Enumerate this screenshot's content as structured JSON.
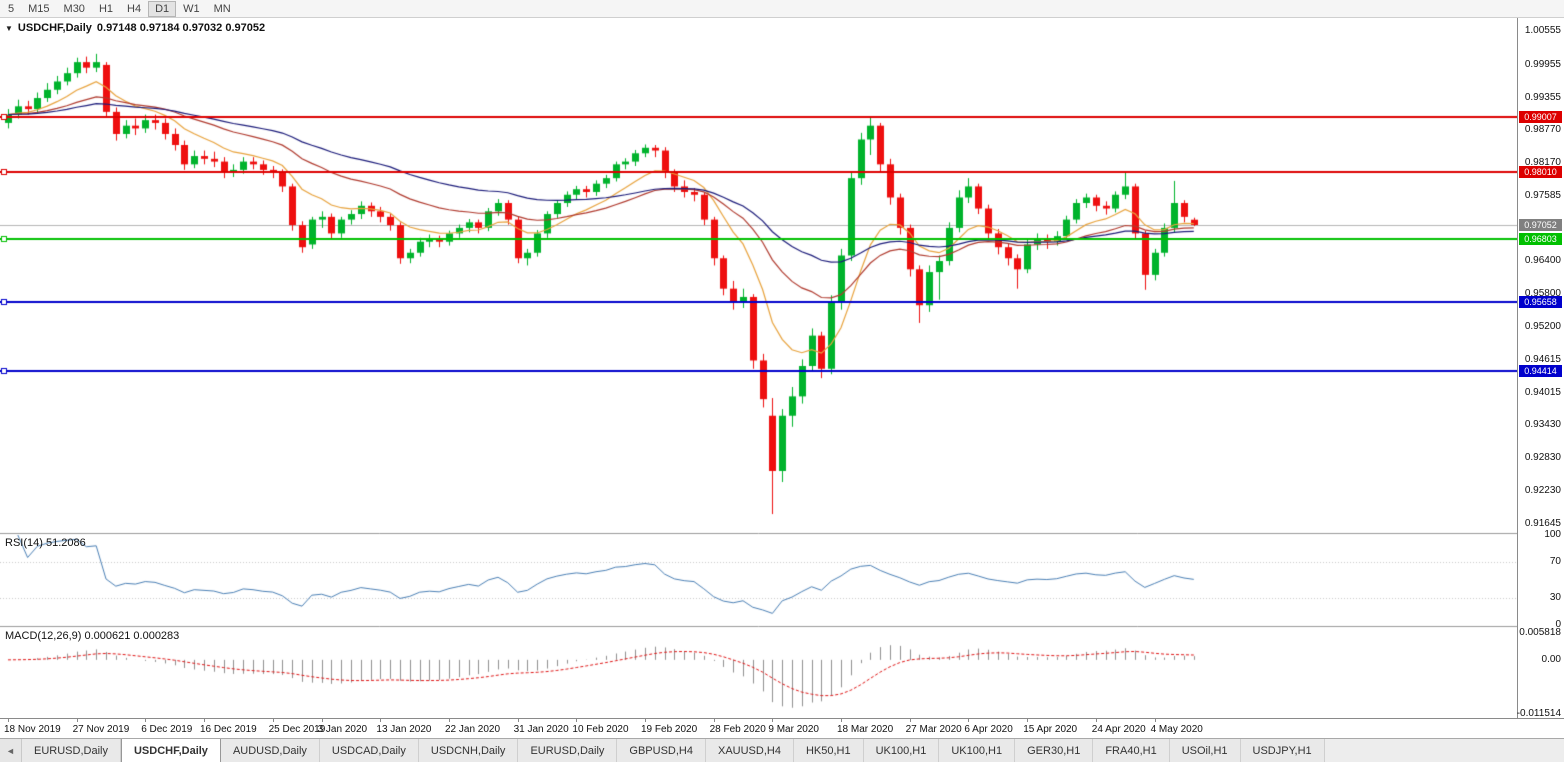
{
  "toolbar": {
    "periods": [
      "5",
      "M15",
      "M30",
      "H1",
      "H4",
      "D1",
      "W1",
      "MN"
    ],
    "active_period": "D1"
  },
  "icons": {
    "collapse": "▼",
    "tab_scroll_left": "◄"
  },
  "chart": {
    "symbol_title": "USDCHF,Daily",
    "ohlc_text": "0.97148 0.97184 0.97032 0.97052",
    "open": "0.97148",
    "high": "0.97184",
    "low": "0.97032",
    "close": "0.97052"
  },
  "indicators": {
    "rsi": {
      "label": "RSI(14) 51.2086",
      "period": 14,
      "value": 51.2086,
      "axis_labels": [
        "100",
        "70",
        "30",
        "0"
      ],
      "levels": [
        70,
        30
      ],
      "line_color": "#4a7fb5"
    },
    "macd": {
      "label": "MACD(12,26,9) 0.000621 0.000283",
      "fast": 12,
      "slow": 26,
      "signal": 9,
      "macd_value": 0.000621,
      "signal_value": 0.000283,
      "axis_labels": [
        "0.005818",
        "0.00",
        "-0.011514"
      ],
      "histogram_color": "#909090",
      "signal_color": "#e01515"
    }
  },
  "price_axis": {
    "labels": [
      "1.00555",
      "0.99955",
      "0.99355",
      "0.98770",
      "0.98170",
      "0.97585",
      "0.96400",
      "0.95800",
      "0.95200",
      "0.94615",
      "0.94015",
      "0.93430",
      "0.92830",
      "0.92230",
      "0.91645"
    ]
  },
  "levels": [
    {
      "price": 0.99007,
      "text": "0.99007",
      "color": "#dd0000",
      "type": "resistance"
    },
    {
      "price": 0.9801,
      "text": "0.98010",
      "color": "#dd0000",
      "type": "resistance"
    },
    {
      "price": 0.96803,
      "text": "0.96803",
      "color": "#00c000",
      "type": "support"
    },
    {
      "price": 0.95658,
      "text": "0.95658",
      "color": "#0000cc",
      "type": "support"
    },
    {
      "price": 0.94414,
      "text": "0.94414",
      "color": "#0000cc",
      "type": "support"
    }
  ],
  "current_price": {
    "price": 0.97052,
    "text": "0.97052",
    "color": "#808080"
  },
  "time_axis": {
    "labels": [
      {
        "text": "18 Nov 2019",
        "index": 0
      },
      {
        "text": "27 Nov 2019",
        "index": 7
      },
      {
        "text": "6 Dec 2019",
        "index": 14
      },
      {
        "text": "16 Dec 2019",
        "index": 20
      },
      {
        "text": "25 Dec 2019",
        "index": 27
      },
      {
        "text": "3 Jan 2020",
        "index": 32
      },
      {
        "text": "13 Jan 2020",
        "index": 38
      },
      {
        "text": "22 Jan 2020",
        "index": 45
      },
      {
        "text": "31 Jan 2020",
        "index": 52
      },
      {
        "text": "10 Feb 2020",
        "index": 58
      },
      {
        "text": "19 Feb 2020",
        "index": 65
      },
      {
        "text": "28 Feb 2020",
        "index": 72
      },
      {
        "text": "9 Mar 2020",
        "index": 78
      },
      {
        "text": "18 Mar 2020",
        "index": 85
      },
      {
        "text": "27 Mar 2020",
        "index": 92
      },
      {
        "text": "6 Apr 2020",
        "index": 98
      },
      {
        "text": "15 Apr 2020",
        "index": 104
      },
      {
        "text": "24 Apr 2020",
        "index": 111
      },
      {
        "text": "4 May 2020",
        "index": 117
      }
    ]
  },
  "tabs": {
    "active_index": 1,
    "items": [
      "EURUSD,Daily",
      "USDCHF,Daily",
      "AUDUSD,Daily",
      "USDCAD,Daily",
      "USDCNH,Daily",
      "EURUSD,Daily",
      "GBPUSD,H4",
      "XAUUSD,H4",
      "HK50,H1",
      "UK100,H1",
      "UK100,H1",
      "GER30,H1",
      "FRA40,H1",
      "USOil,H1",
      "USDJPY,H1"
    ]
  },
  "chart_data": {
    "type": "candlestick",
    "symbol": "USDCHF",
    "timeframe": "Daily",
    "colors": {
      "up": "#00b32c",
      "down": "#ee0f0f",
      "background": "#ffffff"
    },
    "moving_averages": [
      {
        "name": "fast-ma",
        "period": 10,
        "color": "#e8a33d"
      },
      {
        "name": "mid-ma",
        "period": 25,
        "color": "#b03a2e"
      },
      {
        "name": "slow-ma",
        "period": 45,
        "color": "#1b1b7a"
      }
    ],
    "candles": [
      [
        0.989,
        0.9915,
        0.988,
        0.9905
      ],
      [
        0.9905,
        0.9932,
        0.9898,
        0.992
      ],
      [
        0.992,
        0.993,
        0.9905,
        0.9915
      ],
      [
        0.9915,
        0.9945,
        0.9908,
        0.9935
      ],
      [
        0.9935,
        0.9962,
        0.9928,
        0.995
      ],
      [
        0.995,
        0.9975,
        0.9942,
        0.9965
      ],
      [
        0.9965,
        0.999,
        0.9958,
        0.998
      ],
      [
        0.998,
        1.0008,
        0.9972,
        1.0
      ],
      [
        1.0,
        1.001,
        0.998,
        0.999
      ],
      [
        0.999,
        1.0015,
        0.9982,
        1.0
      ],
      [
        0.9995,
        1.0,
        0.99,
        0.991
      ],
      [
        0.991,
        0.9918,
        0.9858,
        0.987
      ],
      [
        0.987,
        0.9895,
        0.9862,
        0.9885
      ],
      [
        0.9885,
        0.9898,
        0.9868,
        0.988
      ],
      [
        0.988,
        0.9905,
        0.9872,
        0.9895
      ],
      [
        0.9895,
        0.9905,
        0.9878,
        0.989
      ],
      [
        0.989,
        0.9898,
        0.986,
        0.987
      ],
      [
        0.987,
        0.988,
        0.984,
        0.985
      ],
      [
        0.985,
        0.9858,
        0.9805,
        0.9815
      ],
      [
        0.9815,
        0.984,
        0.9808,
        0.983
      ],
      [
        0.983,
        0.984,
        0.9815,
        0.9825
      ],
      [
        0.9825,
        0.9838,
        0.981,
        0.982
      ],
      [
        0.982,
        0.9828,
        0.979,
        0.98
      ],
      [
        0.98,
        0.9815,
        0.9792,
        0.9805
      ],
      [
        0.9805,
        0.9828,
        0.9798,
        0.982
      ],
      [
        0.982,
        0.9828,
        0.9806,
        0.9815
      ],
      [
        0.9815,
        0.9822,
        0.9796,
        0.9805
      ],
      [
        0.9805,
        0.9812,
        0.979,
        0.98
      ],
      [
        0.98,
        0.9806,
        0.9765,
        0.9775
      ],
      [
        0.9775,
        0.978,
        0.9695,
        0.9705
      ],
      [
        0.9705,
        0.9712,
        0.9655,
        0.9665
      ],
      [
        0.967,
        0.972,
        0.9662,
        0.9715
      ],
      [
        0.9715,
        0.973,
        0.97,
        0.972
      ],
      [
        0.972,
        0.9726,
        0.968,
        0.969
      ],
      [
        0.969,
        0.972,
        0.9682,
        0.9715
      ],
      [
        0.9715,
        0.9732,
        0.9706,
        0.9725
      ],
      [
        0.9725,
        0.9748,
        0.9716,
        0.974
      ],
      [
        0.974,
        0.9746,
        0.972,
        0.973
      ],
      [
        0.973,
        0.9738,
        0.971,
        0.972
      ],
      [
        0.972,
        0.9726,
        0.9695,
        0.9705
      ],
      [
        0.9705,
        0.971,
        0.9635,
        0.9645
      ],
      [
        0.9645,
        0.9662,
        0.9636,
        0.9655
      ],
      [
        0.9655,
        0.9682,
        0.9648,
        0.9675
      ],
      [
        0.9675,
        0.9688,
        0.9665,
        0.968
      ],
      [
        0.968,
        0.9686,
        0.9665,
        0.9675
      ],
      [
        0.9675,
        0.9695,
        0.9668,
        0.969
      ],
      [
        0.969,
        0.9706,
        0.9682,
        0.97
      ],
      [
        0.97,
        0.9716,
        0.9692,
        0.971
      ],
      [
        0.971,
        0.9715,
        0.969,
        0.97
      ],
      [
        0.97,
        0.9736,
        0.9694,
        0.973
      ],
      [
        0.973,
        0.9752,
        0.9722,
        0.9745
      ],
      [
        0.9745,
        0.975,
        0.9706,
        0.9715
      ],
      [
        0.9715,
        0.972,
        0.9636,
        0.9645
      ],
      [
        0.9645,
        0.9662,
        0.9632,
        0.9655
      ],
      [
        0.9655,
        0.9696,
        0.9648,
        0.969
      ],
      [
        0.969,
        0.973,
        0.9682,
        0.9725
      ],
      [
        0.9725,
        0.975,
        0.9718,
        0.9745
      ],
      [
        0.9745,
        0.9766,
        0.9738,
        0.976
      ],
      [
        0.976,
        0.9776,
        0.9752,
        0.977
      ],
      [
        0.977,
        0.9776,
        0.9755,
        0.9765
      ],
      [
        0.9765,
        0.9786,
        0.9758,
        0.978
      ],
      [
        0.978,
        0.9796,
        0.9772,
        0.979
      ],
      [
        0.979,
        0.982,
        0.9784,
        0.9815
      ],
      [
        0.9815,
        0.9826,
        0.9806,
        0.982
      ],
      [
        0.982,
        0.9841,
        0.9812,
        0.9835
      ],
      [
        0.9835,
        0.9851,
        0.9828,
        0.9845
      ],
      [
        0.9845,
        0.985,
        0.9828,
        0.984
      ],
      [
        0.984,
        0.9846,
        0.979,
        0.98
      ],
      [
        0.98,
        0.9806,
        0.9765,
        0.9775
      ],
      [
        0.9775,
        0.9786,
        0.9755,
        0.9765
      ],
      [
        0.9765,
        0.9772,
        0.9748,
        0.976
      ],
      [
        0.976,
        0.9764,
        0.9705,
        0.9715
      ],
      [
        0.9715,
        0.972,
        0.9632,
        0.9645
      ],
      [
        0.9645,
        0.965,
        0.9578,
        0.959
      ],
      [
        0.959,
        0.9604,
        0.9552,
        0.9565
      ],
      [
        0.9565,
        0.959,
        0.9555,
        0.9575
      ],
      [
        0.9575,
        0.958,
        0.9445,
        0.946
      ],
      [
        0.946,
        0.9472,
        0.9375,
        0.939
      ],
      [
        0.936,
        0.9392,
        0.9182,
        0.926
      ],
      [
        0.926,
        0.9372,
        0.924,
        0.936
      ],
      [
        0.936,
        0.9412,
        0.934,
        0.9395
      ],
      [
        0.9395,
        0.9462,
        0.9382,
        0.945
      ],
      [
        0.945,
        0.9518,
        0.944,
        0.9505
      ],
      [
        0.9505,
        0.9512,
        0.9428,
        0.9445
      ],
      [
        0.9445,
        0.9578,
        0.9435,
        0.9565
      ],
      [
        0.9565,
        0.9662,
        0.9552,
        0.965
      ],
      [
        0.965,
        0.98,
        0.964,
        0.979
      ],
      [
        0.979,
        0.9872,
        0.9778,
        0.986
      ],
      [
        0.986,
        0.99,
        0.9832,
        0.9885
      ],
      [
        0.9885,
        0.989,
        0.9802,
        0.9815
      ],
      [
        0.9815,
        0.9825,
        0.9742,
        0.9755
      ],
      [
        0.9755,
        0.9762,
        0.9688,
        0.97
      ],
      [
        0.97,
        0.9706,
        0.9612,
        0.9625
      ],
      [
        0.9625,
        0.9632,
        0.9528,
        0.956
      ],
      [
        0.956,
        0.9632,
        0.9548,
        0.962
      ],
      [
        0.962,
        0.965,
        0.957,
        0.964
      ],
      [
        0.964,
        0.971,
        0.9632,
        0.97
      ],
      [
        0.97,
        0.9768,
        0.9692,
        0.9755
      ],
      [
        0.9755,
        0.979,
        0.9745,
        0.9775
      ],
      [
        0.9775,
        0.978,
        0.9725,
        0.9735
      ],
      [
        0.9735,
        0.9742,
        0.9678,
        0.969
      ],
      [
        0.969,
        0.9698,
        0.9652,
        0.9665
      ],
      [
        0.9665,
        0.9672,
        0.9632,
        0.9645
      ],
      [
        0.9645,
        0.9652,
        0.959,
        0.9625
      ],
      [
        0.9625,
        0.9678,
        0.9618,
        0.967
      ],
      [
        0.967,
        0.969,
        0.966,
        0.968
      ],
      [
        0.968,
        0.9688,
        0.9662,
        0.9675
      ],
      [
        0.9675,
        0.9694,
        0.9668,
        0.9685
      ],
      [
        0.9685,
        0.9722,
        0.9678,
        0.9715
      ],
      [
        0.9715,
        0.9752,
        0.9708,
        0.9745
      ],
      [
        0.9745,
        0.9762,
        0.9736,
        0.9755
      ],
      [
        0.9755,
        0.976,
        0.973,
        0.974
      ],
      [
        0.974,
        0.9748,
        0.9724,
        0.9735
      ],
      [
        0.9735,
        0.9766,
        0.9728,
        0.976
      ],
      [
        0.976,
        0.98,
        0.9752,
        0.9775
      ],
      [
        0.9775,
        0.978,
        0.968,
        0.969
      ],
      [
        0.969,
        0.9695,
        0.9588,
        0.9615
      ],
      [
        0.9615,
        0.9662,
        0.9605,
        0.9655
      ],
      [
        0.9655,
        0.9708,
        0.9648,
        0.97
      ],
      [
        0.97,
        0.9785,
        0.9692,
        0.9745
      ],
      [
        0.9745,
        0.975,
        0.971,
        0.972
      ],
      [
        0.97148,
        0.97184,
        0.97032,
        0.97052
      ]
    ]
  }
}
